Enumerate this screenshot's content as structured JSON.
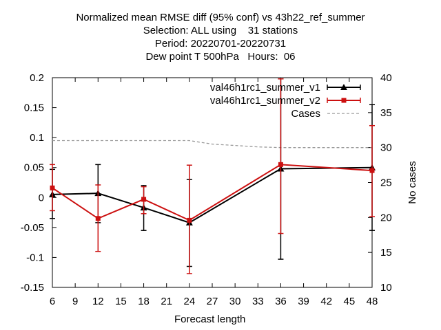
{
  "chart_data": {
    "type": "line",
    "title": [
      "Normalized mean RMSE diff (95% conf) vs 43h22_ref_summer",
      "Selection: ALL using    31 stations",
      "Period: 20220701-20220731",
      "Dew point T 500hPa   Hours:  06"
    ],
    "xlabel": "Forecast length",
    "ylabel_right": "No cases",
    "xlim": [
      6,
      48
    ],
    "ylim": [
      -0.15,
      0.2
    ],
    "y2lim": [
      10,
      40
    ],
    "xticks": [
      "6",
      "9",
      "12",
      "15",
      "18",
      "21",
      "24",
      "27",
      "30",
      "33",
      "36",
      "39",
      "42",
      "45",
      "48"
    ],
    "yticks": [
      "0.2",
      "0.15",
      "0.1",
      "0.05",
      "0",
      "-0.05",
      "-0.1",
      "-0.15"
    ],
    "y2ticks": [
      "40",
      "35",
      "30",
      "25",
      "20",
      "15",
      "10"
    ],
    "legend_position": "top-right",
    "series": [
      {
        "name": "val46h1rc1_summer_v1",
        "color": "#000000",
        "marker": "triangle",
        "x": [
          6,
          12,
          18,
          24,
          36,
          48
        ],
        "y": [
          0.005,
          0.007,
          -0.017,
          -0.042,
          0.048,
          0.05
        ],
        "err_low": [
          -0.035,
          -0.042,
          -0.055,
          -0.115,
          -0.103,
          -0.055
        ],
        "err_high": [
          0.047,
          0.055,
          0.02,
          0.03,
          0.198,
          0.155
        ]
      },
      {
        "name": "val46h1rc1_summer_v2",
        "color": "#cc1010",
        "marker": "square",
        "x": [
          6,
          12,
          18,
          24,
          36,
          48
        ],
        "y": [
          0.016,
          -0.035,
          -0.003,
          -0.038,
          0.055,
          0.045
        ],
        "err_low": [
          -0.022,
          -0.09,
          -0.027,
          -0.127,
          -0.06,
          -0.032
        ],
        "err_high": [
          0.055,
          0.021,
          0.018,
          0.054,
          0.198,
          0.12
        ]
      }
    ],
    "cases": {
      "name": "Cases",
      "color": "#999999",
      "x": [
        6,
        9,
        12,
        15,
        18,
        21,
        24,
        27,
        30,
        33,
        36,
        39,
        42,
        45,
        48
      ],
      "y": [
        31,
        31,
        31,
        31,
        31,
        31,
        31,
        30.5,
        30.3,
        30.1,
        30,
        30,
        30,
        30,
        30
      ]
    }
  }
}
